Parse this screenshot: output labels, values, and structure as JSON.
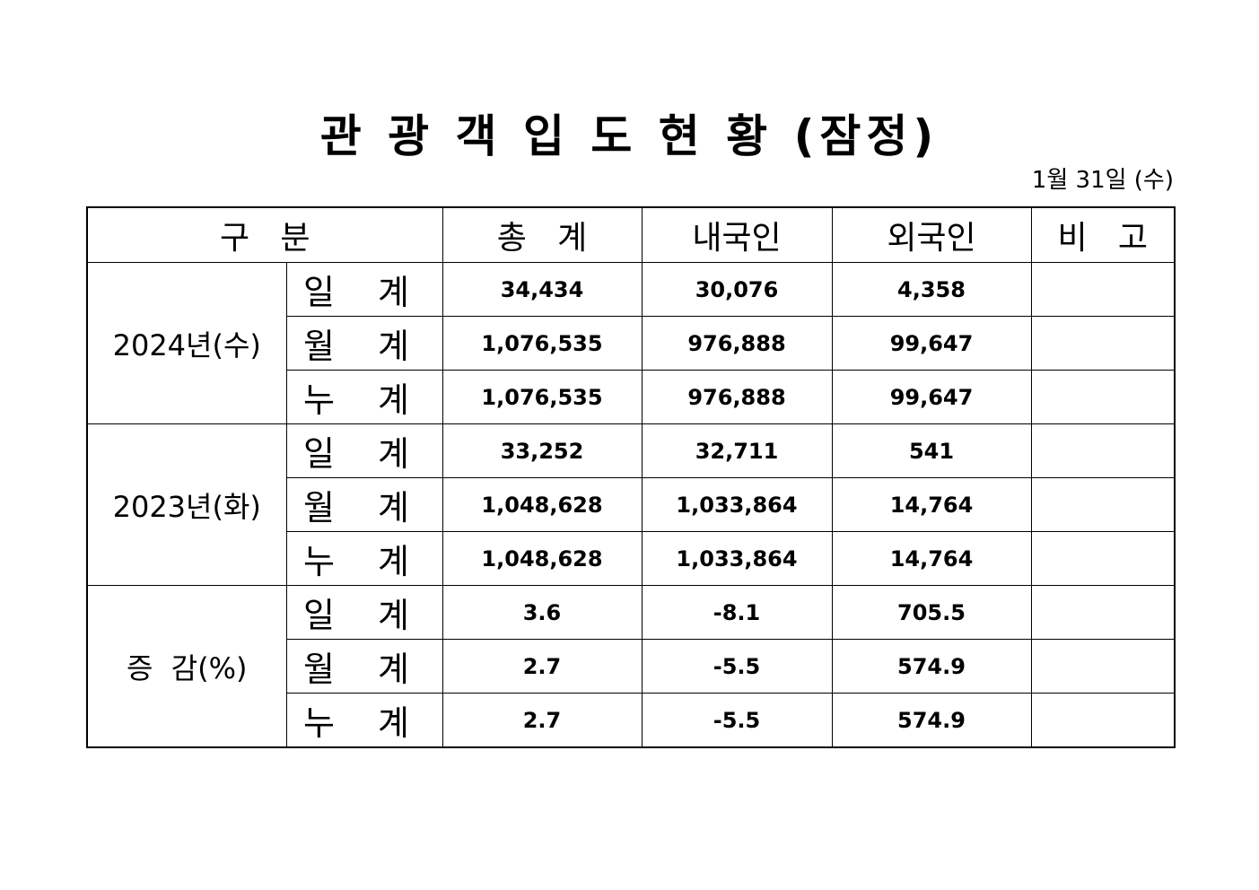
{
  "title": "관 광 객 입 도 현 황 (잠정)",
  "date": "1월 31일 (수)",
  "headers": [
    "구   분",
    "총   계",
    "내국인",
    "외국인",
    "비   고"
  ],
  "groups": [
    {
      "label": "2024년(수)",
      "rows": [
        {
          "sub": "일 계",
          "total": "34,434",
          "domestic": "30,076",
          "foreign": "4,358",
          "note": ""
        },
        {
          "sub": "월 계",
          "total": "1,076,535",
          "domestic": "976,888",
          "foreign": "99,647",
          "note": ""
        },
        {
          "sub": "누 계",
          "total": "1,076,535",
          "domestic": "976,888",
          "foreign": "99,647",
          "note": ""
        }
      ]
    },
    {
      "label": "2023년(화)",
      "rows": [
        {
          "sub": "일 계",
          "total": "33,252",
          "domestic": "32,711",
          "foreign": "541",
          "note": ""
        },
        {
          "sub": "월 계",
          "total": "1,048,628",
          "domestic": "1,033,864",
          "foreign": "14,764",
          "note": ""
        },
        {
          "sub": "누 계",
          "total": "1,048,628",
          "domestic": "1,033,864",
          "foreign": "14,764",
          "note": ""
        }
      ]
    },
    {
      "label": "증  감(%)",
      "rows": [
        {
          "sub": "일 계",
          "total": "3.6",
          "domestic": "-8.1",
          "foreign": "705.5",
          "note": ""
        },
        {
          "sub": "월 계",
          "total": "2.7",
          "domestic": "-5.5",
          "foreign": "574.9",
          "note": ""
        },
        {
          "sub": "누 계",
          "total": "2.7",
          "domestic": "-5.5",
          "foreign": "574.9",
          "note": ""
        }
      ]
    }
  ]
}
